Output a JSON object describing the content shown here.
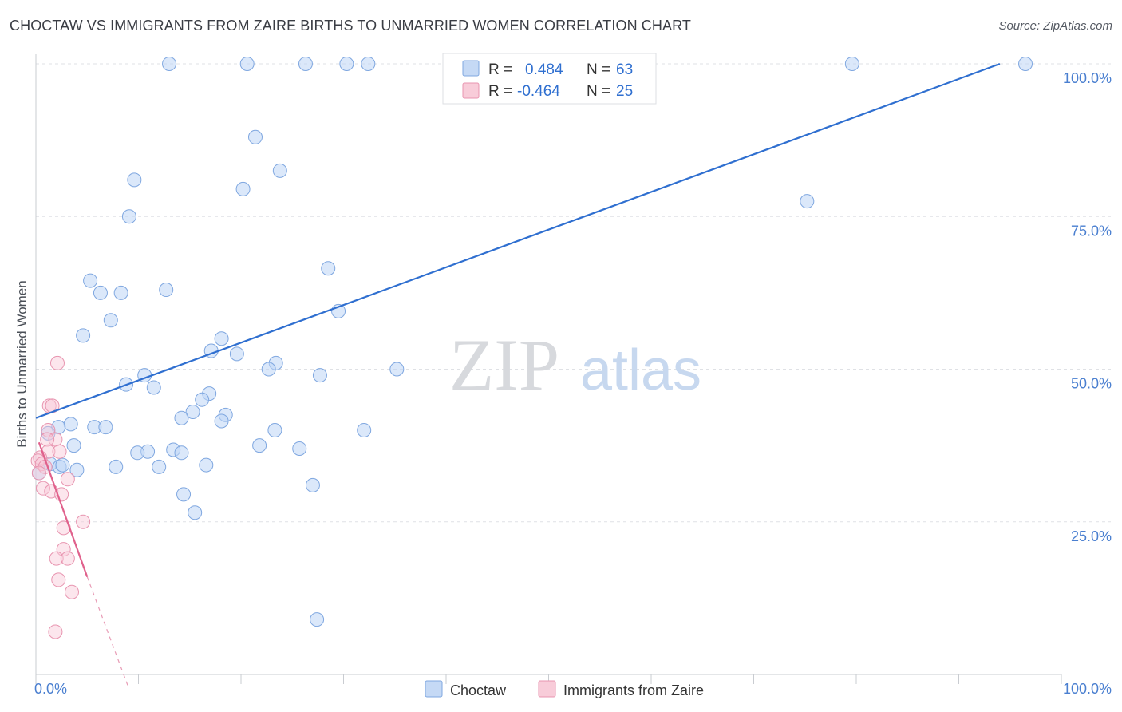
{
  "header": {
    "title": "CHOCTAW VS IMMIGRANTS FROM ZAIRE BIRTHS TO UNMARRIED WOMEN CORRELATION CHART",
    "source": "Source: ZipAtlas.com"
  },
  "watermark": {
    "zip": "ZIP",
    "atlas": "atlas"
  },
  "legend": {
    "r_label": "R =",
    "n_label": "N =",
    "rows": [
      {
        "r": "0.484",
        "n": "63"
      },
      {
        "r": "-0.464",
        "n": "25"
      }
    ]
  },
  "chart_data": {
    "type": "scatter",
    "title": "CHOCTAW VS IMMIGRANTS FROM ZAIRE BIRTHS TO UNMARRIED WOMEN CORRELATION CHART",
    "ylabel": "Births to Unmarried Women",
    "xlabel": "",
    "xlim": [
      0,
      100
    ],
    "ylim": [
      0,
      100
    ],
    "x_tick_labels": [
      "0.0%",
      "100.0%"
    ],
    "y_ticks": [
      25,
      50,
      75,
      100
    ],
    "y_tick_labels": [
      "25.0%",
      "50.0%",
      "75.0%",
      "100.0%"
    ],
    "grid": true,
    "legend_position": "top-center",
    "colors": {
      "choctaw": "#5b8fd8",
      "zaire": "#e87ea0",
      "choctaw_line": "#2f6fd0",
      "zaire_line": "#e0618c"
    },
    "series": [
      {
        "name": "Choctaw",
        "r": 0.484,
        "n": 63,
        "trend": {
          "x": [
            0,
            94
          ],
          "y": [
            42,
            100
          ]
        },
        "points": [
          [
            13,
            100
          ],
          [
            20.6,
            100
          ],
          [
            26.3,
            100
          ],
          [
            30.3,
            100
          ],
          [
            32.4,
            100
          ],
          [
            79.6,
            100
          ],
          [
            96.5,
            100
          ],
          [
            21.4,
            88
          ],
          [
            23.8,
            82.5
          ],
          [
            9.6,
            81
          ],
          [
            20.2,
            79.5
          ],
          [
            9.1,
            75
          ],
          [
            75.2,
            77.5
          ],
          [
            5.3,
            64.5
          ],
          [
            6.3,
            62.5
          ],
          [
            8.3,
            62.5
          ],
          [
            12.7,
            63
          ],
          [
            28.5,
            66.5
          ],
          [
            29.5,
            59.5
          ],
          [
            7.3,
            58
          ],
          [
            4.6,
            55.5
          ],
          [
            18.1,
            55
          ],
          [
            17.1,
            53
          ],
          [
            19.6,
            52.5
          ],
          [
            23.4,
            51
          ],
          [
            22.7,
            50
          ],
          [
            35.2,
            50
          ],
          [
            27.7,
            49
          ],
          [
            10.6,
            49
          ],
          [
            8.8,
            47.5
          ],
          [
            11.5,
            47
          ],
          [
            16.9,
            46
          ],
          [
            16.2,
            45
          ],
          [
            15.3,
            43
          ],
          [
            14.2,
            42
          ],
          [
            18.5,
            42.5
          ],
          [
            18.1,
            41.5
          ],
          [
            23.3,
            40
          ],
          [
            32,
            40
          ],
          [
            3.4,
            41
          ],
          [
            2.2,
            40.5
          ],
          [
            5.7,
            40.5
          ],
          [
            6.8,
            40.5
          ],
          [
            1.2,
            39.5
          ],
          [
            3.7,
            37.5
          ],
          [
            21.8,
            37.5
          ],
          [
            25.7,
            37
          ],
          [
            13.4,
            36.8
          ],
          [
            14.2,
            36.3
          ],
          [
            10.9,
            36.5
          ],
          [
            9.9,
            36.3
          ],
          [
            1.4,
            34.5
          ],
          [
            2.3,
            34
          ],
          [
            2.6,
            34.3
          ],
          [
            7.8,
            34
          ],
          [
            12,
            34
          ],
          [
            16.6,
            34.3
          ],
          [
            4,
            33.5
          ],
          [
            0.3,
            33
          ],
          [
            27,
            31
          ],
          [
            14.4,
            29.5
          ],
          [
            15.5,
            26.5
          ],
          [
            27.4,
            9
          ]
        ]
      },
      {
        "name": "Immigrants from Zaire",
        "r": -0.464,
        "n": 25,
        "trend": {
          "x": [
            0.3,
            5
          ],
          "y": [
            38,
            16
          ],
          "dashed_x": [
            5,
            9
          ],
          "dashed_y": [
            16,
            -2
          ]
        },
        "points": [
          [
            2.1,
            51
          ],
          [
            1.3,
            44
          ],
          [
            1.6,
            44
          ],
          [
            1.2,
            40
          ],
          [
            1.9,
            38.5
          ],
          [
            1.1,
            38.5
          ],
          [
            1.2,
            36.5
          ],
          [
            2.3,
            36.5
          ],
          [
            0.4,
            35.5
          ],
          [
            0.2,
            35
          ],
          [
            0.6,
            34.5
          ],
          [
            0.9,
            34
          ],
          [
            0.3,
            33
          ],
          [
            3.1,
            32
          ],
          [
            0.7,
            30.5
          ],
          [
            1.5,
            30
          ],
          [
            2.5,
            29.5
          ],
          [
            4.6,
            25
          ],
          [
            2.7,
            24
          ],
          [
            2.7,
            20.5
          ],
          [
            2,
            19
          ],
          [
            3.1,
            19
          ],
          [
            2.2,
            15.5
          ],
          [
            3.5,
            13.5
          ],
          [
            1.9,
            7
          ]
        ]
      }
    ]
  },
  "bottom_legend": {
    "items": [
      "Choctaw",
      "Immigrants from Zaire"
    ]
  }
}
